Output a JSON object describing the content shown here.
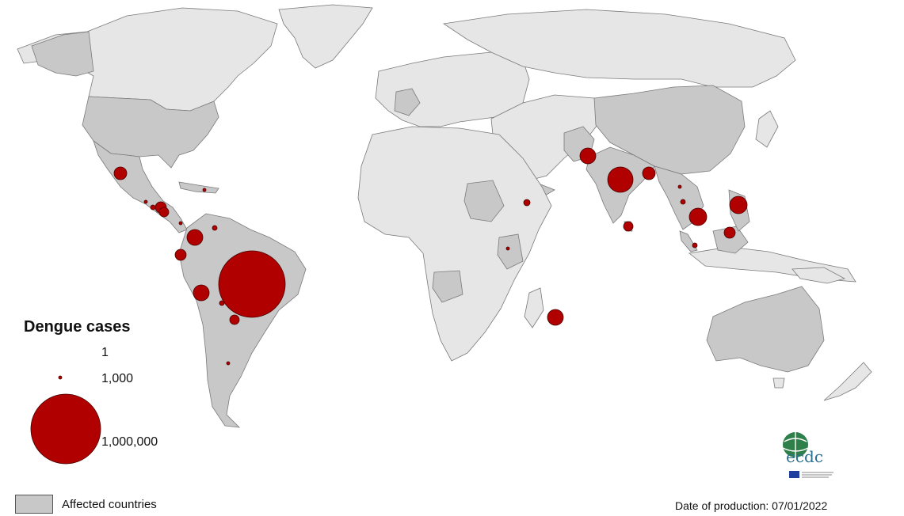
{
  "colors": {
    "affected": "#c8c8c8",
    "unaffected": "#e6e6e6",
    "bubble": "#b00000",
    "border": "#7a7a7a"
  },
  "legend": {
    "title": "Dengue cases",
    "sizes": [
      "1",
      "1,000",
      "1,000,000"
    ],
    "affected_label": "Affected countries"
  },
  "date_text": "Date of production: 07/01/2022",
  "logo": {
    "text": "ecdc",
    "icon": "ecdc-globe-logo"
  }
}
